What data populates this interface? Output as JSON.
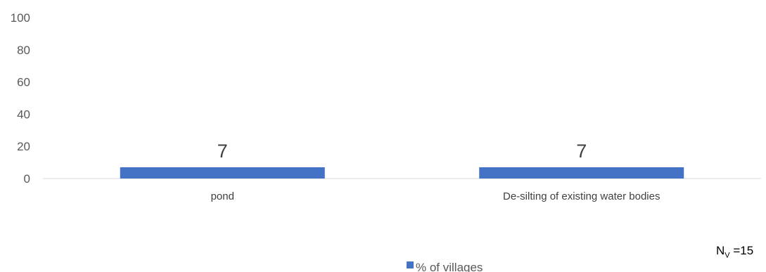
{
  "chart_data": {
    "type": "bar",
    "categories": [
      "pond",
      "De-silting of existing water bodies"
    ],
    "series": [
      {
        "name": "% of villages",
        "values": [
          7,
          7
        ],
        "color": "#4472c4"
      }
    ],
    "yticks": [
      0,
      20,
      40,
      60,
      80,
      100
    ],
    "ylim": [
      0,
      100
    ],
    "grid": false,
    "legend_position": "bottom",
    "data_labels": [
      "7",
      "7"
    ]
  },
  "note": {
    "main": "N",
    "sub": "V",
    "suffix": " =15"
  }
}
